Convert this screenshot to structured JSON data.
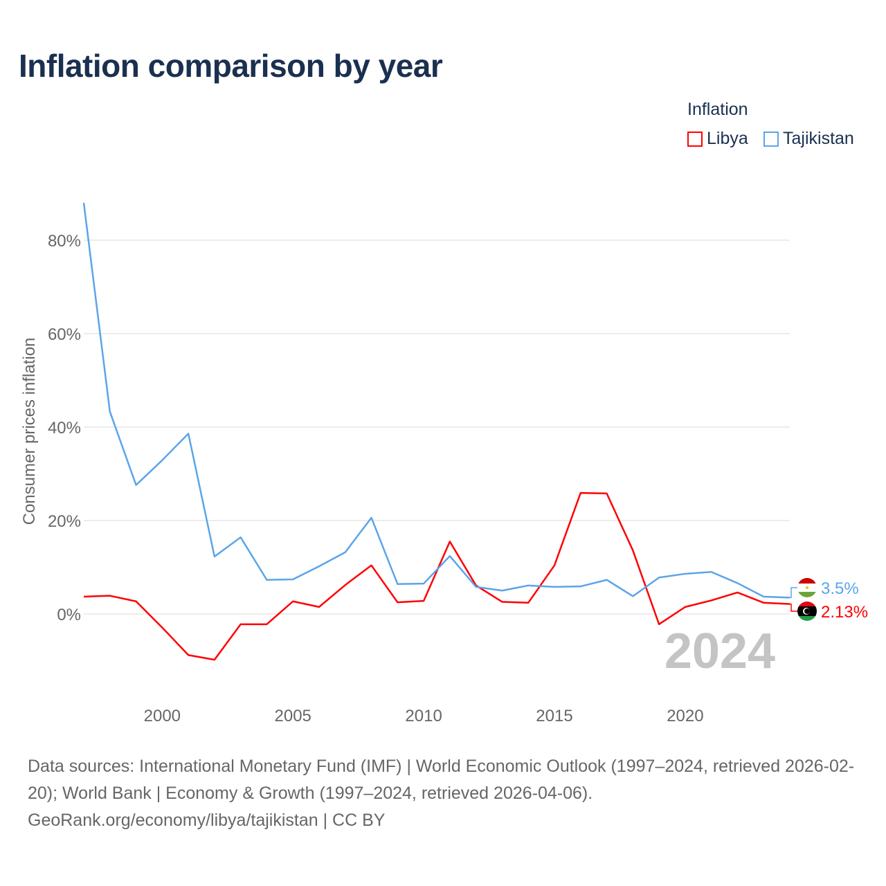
{
  "title": "Inflation comparison by year",
  "legend": {
    "title": "Inflation",
    "items": [
      {
        "label": "Libya",
        "color": "#ff0000"
      },
      {
        "label": "Tajikistan",
        "color": "#5ba4ea"
      }
    ]
  },
  "chart_data": {
    "type": "line",
    "title": "Inflation comparison by year",
    "xlabel": "",
    "ylabel": "Consumer prices inflation",
    "x": [
      1997,
      1998,
      1999,
      2000,
      2001,
      2002,
      2003,
      2004,
      2005,
      2006,
      2007,
      2008,
      2009,
      2010,
      2011,
      2012,
      2013,
      2014,
      2015,
      2016,
      2017,
      2018,
      2019,
      2020,
      2021,
      2022,
      2023,
      2024
    ],
    "xlim": [
      1997,
      2024
    ],
    "ylim": [
      -18,
      90
    ],
    "x_ticks": [
      "2000",
      "2005",
      "2010",
      "2015",
      "2020"
    ],
    "y_ticks": [
      "0%",
      "20%",
      "40%",
      "60%",
      "80%"
    ],
    "grid": true,
    "legend_position": "top-right",
    "year_label": "2024",
    "series": [
      {
        "name": "Libya",
        "color": "#ff0000",
        "end_label": "2.13%",
        "values": [
          3.7,
          3.9,
          2.7,
          -2.9,
          -8.8,
          -9.8,
          -2.2,
          -2.2,
          2.7,
          1.5,
          6.2,
          10.4,
          2.5,
          2.8,
          15.5,
          6.1,
          2.6,
          2.4,
          10.4,
          25.9,
          25.8,
          13.6,
          -2.2,
          1.5,
          2.9,
          4.6,
          2.4,
          2.13
        ]
      },
      {
        "name": "Tajikistan",
        "color": "#5ba4ea",
        "end_label": "3.5%",
        "values": [
          88.0,
          43.3,
          27.6,
          32.9,
          38.6,
          12.3,
          16.4,
          7.3,
          7.4,
          10.2,
          13.2,
          20.6,
          6.4,
          6.5,
          12.4,
          5.8,
          5.0,
          6.1,
          5.8,
          5.9,
          7.3,
          3.8,
          7.8,
          8.6,
          9.0,
          6.6,
          3.7,
          3.5
        ]
      }
    ]
  },
  "source": {
    "line1": "Data sources: International Monetary Fund (IMF) | World Economic Outlook (1997–2024, retrieved 2026-02-20); World Bank | Economy & Growth (1997–2024, retrieved 2026-04-06).",
    "line2": "GeoRank.org/economy/libya/tajikistan | CC BY"
  }
}
